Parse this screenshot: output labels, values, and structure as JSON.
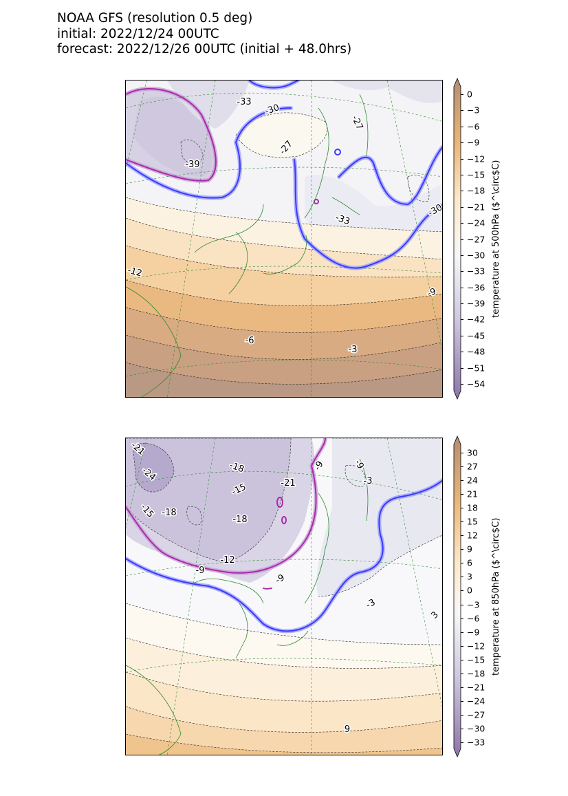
{
  "header": {
    "line1": "NOAA GFS (resolution 0.5 deg)",
    "line2": "initial: 2022/12/24 00UTC",
    "line3": "forecast: 2022/12/26 00UTC (initial + 48.0hrs)"
  },
  "map500": {
    "colorbar_label": "temperature at 500hPa ($^\\circ$C)",
    "colorbar_ticks": [
      "0",
      "−3",
      "−6",
      "−9",
      "−12",
      "−15",
      "−18",
      "−21",
      "−24",
      "−27",
      "−30",
      "−33",
      "−36",
      "−39",
      "−42",
      "−45",
      "−48",
      "−51",
      "−54"
    ],
    "contour_labels": [
      "-33",
      "-30",
      "-27",
      "-27",
      "-39",
      "-33",
      "-30",
      "-12",
      "-9",
      "-6",
      "-3"
    ]
  },
  "map850": {
    "colorbar_label": "temperature at 850hPa ($^\\circ$C)",
    "colorbar_ticks": [
      "30",
      "27",
      "24",
      "21",
      "18",
      "15",
      "12",
      "9",
      "6",
      "3",
      "0",
      "−3",
      "−6",
      "−9",
      "−12",
      "−15",
      "−18",
      "−21",
      "−24",
      "−27",
      "−30",
      "−33"
    ],
    "contour_labels": [
      "-21",
      "-24",
      "-18",
      "-15",
      "-21",
      "-9",
      "-9",
      "-3",
      "-15",
      "-18",
      "-18",
      "-12",
      "-9",
      "-9",
      "-3",
      "3",
      "9"
    ]
  },
  "colors": {
    "cold_purple": "#8b74a8",
    "neutral": "#f7f7f7",
    "warm_tan": "#e8b67a",
    "deep_brown": "#b28e73",
    "highlight_blue": "#3a3aff",
    "highlight_magenta": "#aa2aa8",
    "coastline": "#2a8a2a"
  }
}
